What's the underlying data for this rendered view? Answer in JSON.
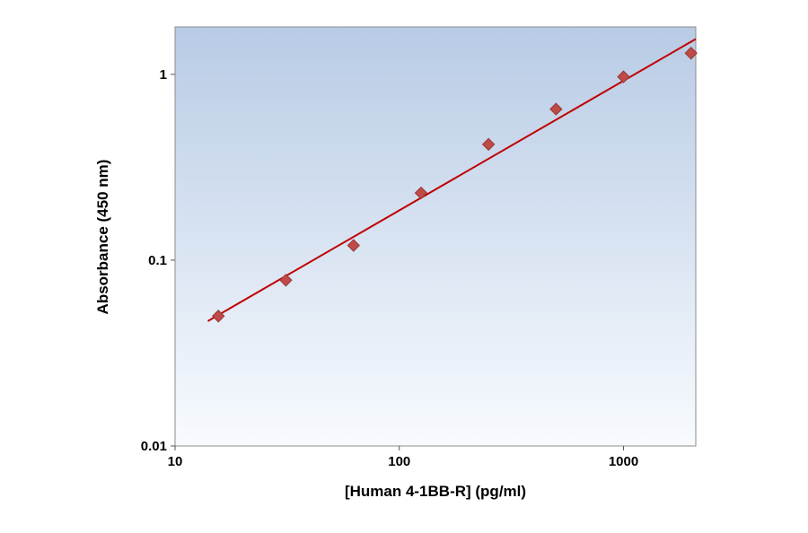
{
  "chart_data": {
    "type": "scatter",
    "title": "",
    "xlabel": "[Human 4-1BB-R] (pg/ml)",
    "ylabel": "Absorbance (450 nm)",
    "x_scale": "log",
    "y_scale": "log",
    "xlim": [
      10,
      2100
    ],
    "ylim": [
      0.01,
      1.8
    ],
    "x_ticks": [
      10,
      100,
      1000
    ],
    "y_ticks": [
      0.01,
      0.1,
      1
    ],
    "grid": false,
    "legend": "none",
    "plot_bg_top": "#b8cbe5",
    "plot_bg_bottom": "#f8fbfe",
    "border_color": "#8c8c8c",
    "series": [
      {
        "name": "fit-line",
        "kind": "line",
        "color": "#c00000",
        "width": 2,
        "points": [
          {
            "x": 14,
            "y": 0.047
          },
          {
            "x": 2100,
            "y": 1.55
          }
        ]
      },
      {
        "name": "standards",
        "kind": "scatter",
        "marker": "diamond",
        "color": "#bf4a47",
        "edge_color": "#953a38",
        "size": 13,
        "points": [
          {
            "x": 15.6,
            "y": 0.05
          },
          {
            "x": 31.2,
            "y": 0.078
          },
          {
            "x": 62.5,
            "y": 0.12
          },
          {
            "x": 125,
            "y": 0.23
          },
          {
            "x": 250,
            "y": 0.42
          },
          {
            "x": 500,
            "y": 0.65
          },
          {
            "x": 1000,
            "y": 0.97
          },
          {
            "x": 2000,
            "y": 1.3
          }
        ]
      }
    ]
  }
}
